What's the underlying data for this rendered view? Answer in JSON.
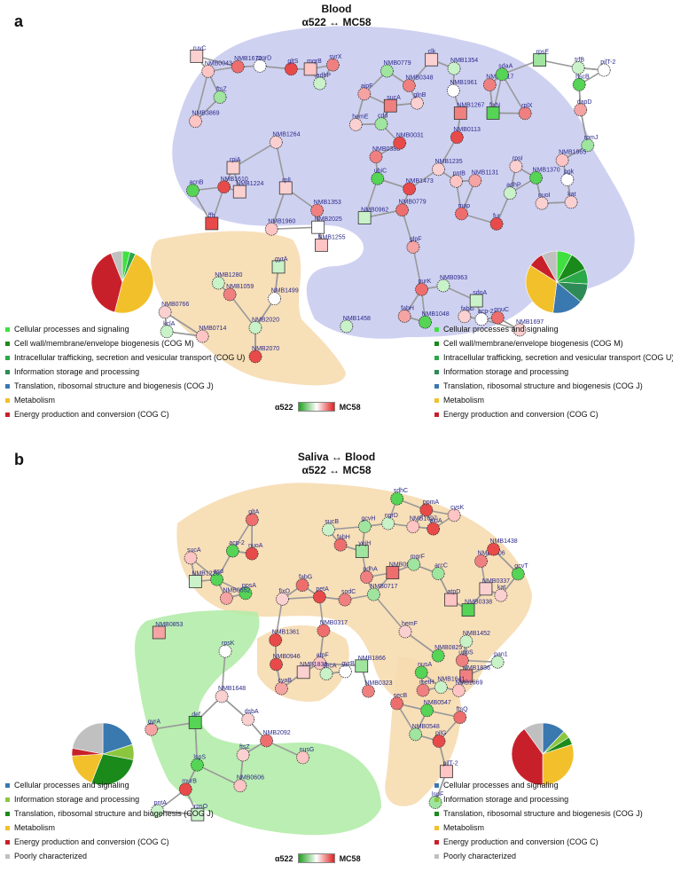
{
  "panel_a": {
    "letter": "a",
    "title_1": "Blood",
    "title_2": "α522 ↔ MC58",
    "scale_left": "α522",
    "scale_right": "MC58",
    "legend_left": [
      {
        "label": "Cellular processes and signaling",
        "color": "#3fe03f"
      },
      {
        "label": "Cell wall/membrane/envelope biogenesis (COG M)",
        "color": "#1a8a1a"
      },
      {
        "label": "Intracellular trafficking, secretion and vesicular transport (COG U)",
        "color": "#2aa84a"
      },
      {
        "label": "Information storage and processing",
        "color": "#2e8b57"
      },
      {
        "label": "Translation, ribosomal structure and biogenesis (COG J)",
        "color": "#3a78b0"
      },
      {
        "label": "Metabolism",
        "color": "#f2c02a"
      },
      {
        "label": "Energy production and conversion (COG C)",
        "color": "#c8202a"
      }
    ],
    "legend_right": [
      {
        "label": "Cellular processes and signaling",
        "color": "#3fe03f"
      },
      {
        "label": "Cell wall/membrane/envelope biogenesis (COG M)",
        "color": "#1a8a1a"
      },
      {
        "label": "Intracellular trafficking, secretion and vesicular transport (COG U)",
        "color": "#2aa84a"
      },
      {
        "label": "Information storage and processing",
        "color": "#2e8b57"
      },
      {
        "label": "Translation, ribosomal structure and biogenesis (COG J)",
        "color": "#3a78b0"
      },
      {
        "label": "Metabolism",
        "color": "#f2c02a"
      },
      {
        "label": "Energy production and conversion (COG C)",
        "color": "#c8202a"
      }
    ],
    "pie_left": [
      {
        "value": 4,
        "color": "#3fe03f"
      },
      {
        "value": 3,
        "color": "#2aa84a"
      },
      {
        "value": 47,
        "color": "#f2c02a"
      },
      {
        "value": 40,
        "color": "#c8202a"
      },
      {
        "value": 6,
        "color": "#c0c0c0"
      }
    ],
    "pie_right": [
      {
        "value": 8,
        "color": "#3fe03f"
      },
      {
        "value": 10,
        "color": "#1a8a1a"
      },
      {
        "value": 8,
        "color": "#2aa84a"
      },
      {
        "value": 10,
        "color": "#2e8b57"
      },
      {
        "value": 16,
        "color": "#3a78b0"
      },
      {
        "value": 32,
        "color": "#f2c02a"
      },
      {
        "value": 8,
        "color": "#c8202a"
      },
      {
        "value": 8,
        "color": "#c0c0c0"
      }
    ],
    "nodes": [
      "map",
      "rplI",
      "rplX",
      "rpmJ",
      "NMB0388",
      "NMB1224",
      "NMB1235",
      "rpsE",
      "rpsI",
      "adhP",
      "NMB1353",
      "NMB0113",
      "NMB1264",
      "NMB0779",
      "NMB1131",
      "NMB1017",
      "syrX",
      "clk",
      "NMB0779",
      "pilT-2",
      "NMB1354",
      "ubiC",
      "trfB",
      "glnB",
      "NMB0043",
      "nuoI",
      "NMB2025",
      "NMB3869",
      "fixN",
      "mqrB",
      "mqrD",
      "hemE",
      "NMB1267",
      "NMB0348",
      "NMB1370",
      "NMB1610",
      "NMB1672",
      "NMB1473",
      "hscB",
      "gltS",
      "sdaA",
      "pgk",
      "ffh",
      "kat",
      "fur",
      "rpiA",
      "NMB0031",
      "pntB",
      "ftsZ",
      "cdd",
      "NMB1965",
      "NMB1961",
      "NMB1960",
      "adhP",
      "aipF",
      "acnB",
      "dapD",
      "ruvC",
      "NMB0962",
      "sucA",
      "NMB1458",
      "NMB0963",
      "glpF",
      "pnuC",
      "acp-2",
      "NMB1697",
      "fabH",
      "fabG",
      "sdoA",
      "purK",
      "NMB1255",
      "NMB1048",
      "NMB2020",
      "NMB1499",
      "NMB2070",
      "NMB1059",
      "kclA",
      "NMB0714",
      "gyrA",
      "NMB1280",
      "NMB0766"
    ]
  },
  "panel_b": {
    "letter": "b",
    "title_1": "Saliva ↔ Blood",
    "title_2": "α522 ↔ MC58",
    "scale_left": "α522",
    "scale_right": "MC58",
    "legend_left": [
      {
        "label": "Cellular processes and signaling",
        "color": "#3a78b0"
      },
      {
        "label": "Information storage and processing",
        "color": "#8cc63f"
      },
      {
        "label": "Translation, ribosomal structure and biogenesis (COG J)",
        "color": "#1a8a1a"
      },
      {
        "label": "Metabolism",
        "color": "#f2c02a"
      },
      {
        "label": "Energy production and conversion (COG C)",
        "color": "#c8202a"
      },
      {
        "label": "Poorly characterized",
        "color": "#c0c0c0"
      }
    ],
    "legend_right": [
      {
        "label": "Cellular processes and signaling",
        "color": "#3a78b0"
      },
      {
        "label": "Information storage and processing",
        "color": "#8cc63f"
      },
      {
        "label": "Translation, ribosomal structure and biogenesis (COG J)",
        "color": "#1a8a1a"
      },
      {
        "label": "Metabolism",
        "color": "#f2c02a"
      },
      {
        "label": "Energy production and conversion (COG C)",
        "color": "#c8202a"
      },
      {
        "label": "Poorly characterized",
        "color": "#c0c0c0"
      }
    ],
    "pie_left": [
      {
        "value": 20,
        "color": "#3a78b0"
      },
      {
        "value": 8,
        "color": "#8cc63f"
      },
      {
        "value": 28,
        "color": "#1a8a1a"
      },
      {
        "value": 18,
        "color": "#f2c02a"
      },
      {
        "value": 4,
        "color": "#c8202a"
      },
      {
        "value": 22,
        "color": "#c0c0c0"
      }
    ],
    "pie_right": [
      {
        "value": 12,
        "color": "#3a78b0"
      },
      {
        "value": 4,
        "color": "#8cc63f"
      },
      {
        "value": 4,
        "color": "#1a8a1a"
      },
      {
        "value": 30,
        "color": "#f2c02a"
      },
      {
        "value": 40,
        "color": "#c8202a"
      },
      {
        "value": 10,
        "color": "#c0c0c0"
      }
    ],
    "nodes": [
      "NMB0338",
      "NMB0604",
      "NMB0337",
      "ppsA",
      "aldA",
      "NMB1697",
      "fabG",
      "asd",
      "yejH",
      "NMB0552",
      "gcvH",
      "gcvT",
      "acp-2",
      "fabH",
      "sucB",
      "NMB0006",
      "cysK",
      "pdhA",
      "sdhC",
      "nuoA",
      "ngrD",
      "mqrF",
      "arcC",
      "sucA",
      "petA",
      "gltA",
      "NMB1220",
      "ppmA",
      "sodC",
      "kat",
      "NMB1438",
      "atpD",
      "fixO",
      "NMB0717",
      "NMB0317",
      "NMB0825",
      "NMB1866",
      "NMB1361",
      "NMB0946",
      "cyaB",
      "atpF",
      "NMB0323",
      "hemF",
      "NMB1838",
      "NMB1836",
      "pan1",
      "NMB1452",
      "uppS",
      "NMB1641",
      "nusA",
      "metH",
      "NMB1669",
      "NMB0853",
      "gyrA",
      "gyrB",
      "rpsK",
      "pntA",
      "lspS",
      "rpsO",
      "ftsZ",
      "murB",
      "NMB1648",
      "NMB0606",
      "def",
      "nusG",
      "NMB2092",
      "secA",
      "dsbA",
      "NMB0547",
      "NMB0548",
      "lspF",
      "pilG",
      "pilT-2",
      "secB",
      "ftsQ"
    ]
  }
}
